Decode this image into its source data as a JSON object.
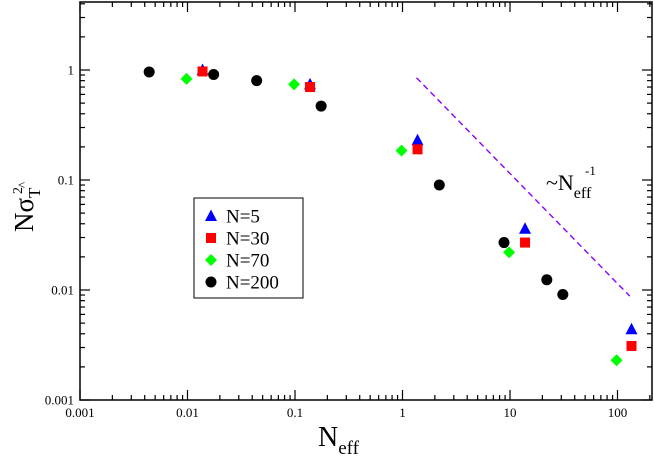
{
  "chart_data": {
    "type": "scatter",
    "title": "",
    "xlabel": {
      "main": "N",
      "sub": "eff"
    },
    "ylabel": {
      "main": "N",
      "sigma": "σ",
      "sup": "2",
      "sub": "T",
      "hat": "^"
    },
    "x_scale": "log",
    "y_scale": "log",
    "xlim": [
      0.001,
      150
    ],
    "ylim": [
      0.001,
      5
    ],
    "x_ticks": [
      {
        "value": 0.001,
        "label": "0.001"
      },
      {
        "value": 0.01,
        "label": "0.01"
      },
      {
        "value": 0.1,
        "label": "0.1"
      },
      {
        "value": 1,
        "label": "1"
      },
      {
        "value": 10,
        "label": "10"
      },
      {
        "value": 100,
        "label": "100"
      }
    ],
    "y_ticks": [
      {
        "value": 0.001,
        "label": "0.001"
      },
      {
        "value": 0.01,
        "label": "0.01"
      },
      {
        "value": 0.1,
        "label": "0.1"
      },
      {
        "value": 1,
        "label": "1"
      }
    ],
    "grid": false,
    "legend_position": "center-left",
    "series": [
      {
        "name": "N=5",
        "marker": "triangle",
        "color": "#0000ff",
        "points": [
          {
            "x": 0.0138,
            "y": 1.0
          },
          {
            "x": 0.138,
            "y": 0.74
          },
          {
            "x": 1.38,
            "y": 0.23
          },
          {
            "x": 13.8,
            "y": 0.036
          },
          {
            "x": 135,
            "y": 0.0044
          }
        ]
      },
      {
        "name": "N=30",
        "marker": "square",
        "color": "#ff0000",
        "points": [
          {
            "x": 0.0138,
            "y": 0.97
          },
          {
            "x": 0.138,
            "y": 0.7
          },
          {
            "x": 1.38,
            "y": 0.19
          },
          {
            "x": 13.8,
            "y": 0.027
          },
          {
            "x": 135,
            "y": 0.0031
          }
        ]
      },
      {
        "name": "N=70",
        "marker": "diamond",
        "color": "#00ff00",
        "points": [
          {
            "x": 0.0098,
            "y": 0.83
          },
          {
            "x": 0.098,
            "y": 0.74
          },
          {
            "x": 0.98,
            "y": 0.185
          },
          {
            "x": 9.8,
            "y": 0.022
          },
          {
            "x": 98,
            "y": 0.0023
          }
        ]
      },
      {
        "name": "N=200",
        "marker": "circle",
        "color": "#000000",
        "points": [
          {
            "x": 0.0044,
            "y": 0.96
          },
          {
            "x": 0.0175,
            "y": 0.91
          },
          {
            "x": 0.044,
            "y": 0.8
          },
          {
            "x": 0.175,
            "y": 0.47
          },
          {
            "x": 2.2,
            "y": 0.09
          },
          {
            "x": 8.8,
            "y": 0.027
          },
          {
            "x": 22,
            "y": 0.0124
          },
          {
            "x": 31,
            "y": 0.0091
          }
        ]
      }
    ],
    "reference_line": {
      "style": "dashed",
      "color": "#8b00ff",
      "points": [
        {
          "x": 1.35,
          "y": 0.85
        },
        {
          "x": 130,
          "y": 0.0088
        }
      ]
    },
    "annotation": {
      "prefix": "~N",
      "sub": "eff",
      "sup": "-1",
      "anchor": {
        "x": 8.5,
        "y": 0.075
      }
    }
  }
}
